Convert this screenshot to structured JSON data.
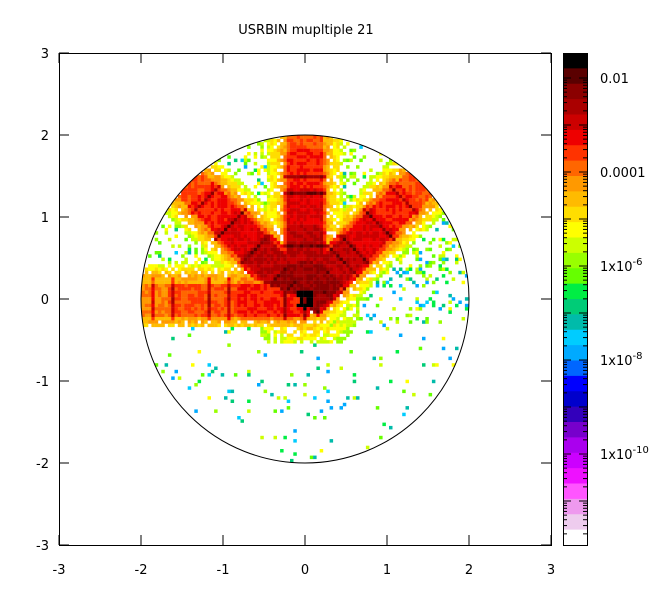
{
  "chart_data": {
    "type": "heatmap",
    "title": "USRBIN mupltiple 21",
    "xlabel": "",
    "ylabel": "",
    "xlim": [
      -3,
      3
    ],
    "ylim": [
      -3,
      3
    ],
    "x_ticks": [
      "-3",
      "-2",
      "-1",
      "0",
      "1",
      "2",
      "3"
    ],
    "y_ticks": [
      "3",
      "2",
      "1",
      "0",
      "-1",
      "-2",
      "-3"
    ],
    "grid": false,
    "colorbar": {
      "scale": "log",
      "range": [
        1e-12,
        0.03
      ],
      "labels": [
        {
          "text": "0.01",
          "base": "0.01",
          "exp": ""
        },
        {
          "text": "0.0001",
          "base": "0.0001",
          "exp": ""
        },
        {
          "text": "1x10^-6",
          "base": "1x10",
          "exp": "-6"
        },
        {
          "text": "1x10^-8",
          "base": "1x10",
          "exp": "-8"
        },
        {
          "text": "1x10^-10",
          "base": "1x10",
          "exp": "-10"
        }
      ],
      "bands": [
        "#000000",
        "#5a0000",
        "#8b0000",
        "#aa0000",
        "#cc0000",
        "#ee0000",
        "#ff3300",
        "#ff6600",
        "#ff9900",
        "#ffbb00",
        "#ffdd00",
        "#ffff00",
        "#ccff00",
        "#99ff00",
        "#66ff00",
        "#00ee44",
        "#00cc77",
        "#00bbaa",
        "#00ccff",
        "#00aaff",
        "#0066ff",
        "#0000ff",
        "#0000cc",
        "#3300bb",
        "#7700cc",
        "#aa00ee",
        "#cc00ff",
        "#ee11ff",
        "#ff55ff",
        "#ee99ee",
        "#eeccee",
        "#ffffff"
      ]
    },
    "geometry": {
      "boundary_circle": {
        "cx": 0,
        "cy": 0,
        "r": 2
      },
      "arms": [
        {
          "name": "top",
          "angle_deg": 90,
          "half_width": 0.27,
          "length": 2.0
        },
        {
          "name": "left",
          "angle_deg": 180,
          "half_width": 0.25,
          "length": 2.0
        },
        {
          "name": "upper-left",
          "angle_deg": 135,
          "half_width": 0.27,
          "length": 2.0
        },
        {
          "name": "upper-right",
          "angle_deg": 45,
          "half_width": 0.27,
          "length": 2.0
        }
      ],
      "hotspot": {
        "x": 0,
        "y": 0.05,
        "value": "max (>0.01)"
      },
      "notes": "Fluence map: four collimated arms (left, up, and two diagonals) with peak at origin; scattered low-value tracks below and around arms within r=2 circle."
    }
  }
}
